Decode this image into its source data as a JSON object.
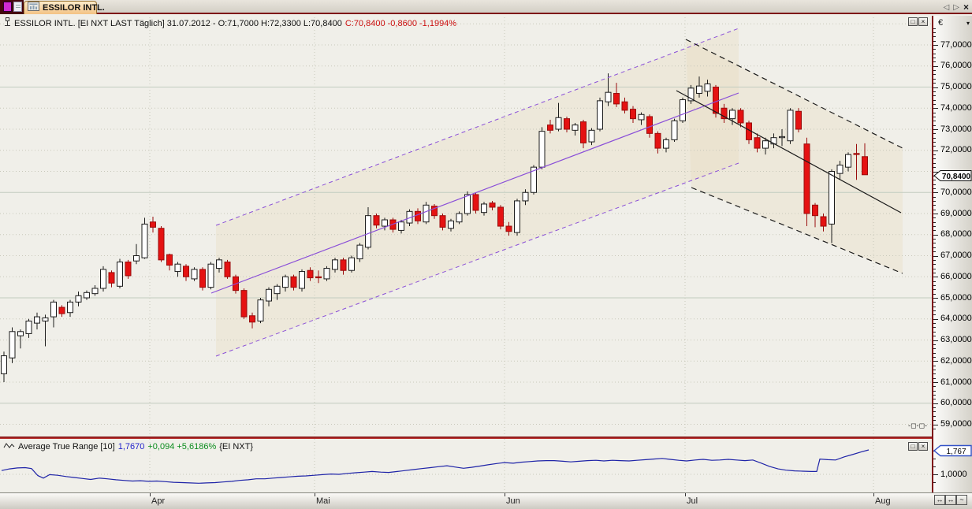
{
  "tab_bar": {
    "tab_title": "ESSILOR INTL.",
    "nav_prev": "◁",
    "nav_next": "▷",
    "nav_close": "×"
  },
  "main_panel": {
    "header_black": "ESSILOR INTL. [EI NXT LAST Täglich] 31.07.2012 - O:71,7000 H:72,3300 L:70,8400",
    "header_red": "C:70,8400 -0,8600 -1,1994%",
    "maximize_glyph": "□",
    "close_glyph": "×"
  },
  "indicator_panel": {
    "name": "Average True Range [10]",
    "value": "1,7670",
    "change": "+0,094 +5,6186%",
    "symbol": "{EI NXT}",
    "maximize_glyph": "□",
    "close_glyph": "×"
  },
  "price_axis": {
    "currency": "€",
    "dropdown_glyph": "▾",
    "pointer_text": "70,8400",
    "link_glyph": "-◻-◻-",
    "labels": [
      {
        "p": 77,
        "t": "77,0000"
      },
      {
        "p": 76,
        "t": "76,0000"
      },
      {
        "p": 75,
        "t": "75,0000"
      },
      {
        "p": 74,
        "t": "74,0000"
      },
      {
        "p": 73,
        "t": "73,0000"
      },
      {
        "p": 72,
        "t": "72,0000"
      },
      {
        "p": 70,
        "t": "70,0000"
      },
      {
        "p": 69,
        "t": "69,0000"
      },
      {
        "p": 68,
        "t": "68,0000"
      },
      {
        "p": 67,
        "t": "67,0000"
      },
      {
        "p": 66,
        "t": "66,0000"
      },
      {
        "p": 65,
        "t": "65,0000"
      },
      {
        "p": 64,
        "t": "64,0000"
      },
      {
        "p": 63,
        "t": "63,0000"
      },
      {
        "p": 62,
        "t": "62,0000"
      },
      {
        "p": 61,
        "t": "61,0000"
      },
      {
        "p": 60,
        "t": "60,0000"
      },
      {
        "p": 59,
        "t": "59,0000"
      }
    ]
  },
  "atr_axis": {
    "pointer_text": "1,767",
    "label_value": 1.0,
    "label_text": "1,0000"
  },
  "time_axis": {
    "months": [
      {
        "label": "Apr",
        "x": 190
      },
      {
        "label": "Mai",
        "x": 399
      },
      {
        "label": "Jun",
        "x": 640
      },
      {
        "label": "Jul",
        "x": 869
      },
      {
        "label": "Aug",
        "x": 1108
      }
    ],
    "buttons": [
      {
        "glyph": "↔"
      },
      {
        "glyph": "↔"
      },
      {
        "glyph": "~"
      }
    ]
  },
  "colors": {
    "panel_bg": "#f0efe9",
    "up_candle_fill": "#ffffff",
    "up_candle_stroke": "#1c1c1c",
    "down_candle_fill": "#e51212",
    "down_candle_stroke": "#990d0d",
    "trend_purple": "#8a4fd8",
    "trend_black": "#1a1a1a",
    "atr_line": "#1f24a8",
    "grid_solid": "#c2ccc0",
    "grid_dotted": "#c8c8ba",
    "channel_tint": "#e7dabc",
    "separator_red": "#b22222"
  },
  "chart_data": [
    {
      "type": "candlestick",
      "title": "ESSILOR INTL. [EI NXT LAST Täglich]",
      "date": "31.07.2012",
      "last": {
        "open": 71.7,
        "high": 72.33,
        "low": 70.84,
        "close": 70.84,
        "change": -0.86,
        "change_pct": -1.1994
      },
      "ylabel": "€",
      "ylim": [
        58.4,
        78.4
      ],
      "y_tick_step": 1.0,
      "y_solid_gridlines": [
        60,
        65,
        70,
        75
      ],
      "x_start": 5,
      "x_step": 10.5,
      "candles": [
        [
          61.4,
          62.45,
          61.0,
          62.25
        ],
        [
          62.15,
          63.6,
          61.9,
          63.4
        ],
        [
          63.2,
          63.5,
          62.6,
          63.4
        ],
        [
          63.3,
          64.0,
          63.1,
          63.9
        ],
        [
          63.8,
          64.3,
          63.5,
          64.1
        ],
        [
          63.9,
          64.2,
          62.7,
          64.05
        ],
        [
          64.1,
          64.9,
          63.6,
          64.8
        ],
        [
          64.55,
          64.65,
          64.1,
          64.25
        ],
        [
          64.3,
          64.9,
          64.1,
          64.8
        ],
        [
          64.8,
          65.3,
          64.6,
          65.1
        ],
        [
          65.0,
          65.35,
          64.9,
          65.25
        ],
        [
          65.2,
          65.6,
          65.1,
          65.45
        ],
        [
          65.45,
          66.5,
          65.3,
          66.35
        ],
        [
          66.2,
          66.3,
          65.5,
          65.7
        ],
        [
          65.55,
          66.85,
          65.45,
          66.7
        ],
        [
          66.7,
          66.8,
          65.9,
          66.05
        ],
        [
          66.75,
          67.55,
          66.6,
          67.0
        ],
        [
          66.9,
          68.8,
          66.85,
          68.5
        ],
        [
          68.6,
          68.85,
          68.1,
          68.35
        ],
        [
          68.3,
          68.4,
          66.7,
          66.8
        ],
        [
          67.05,
          67.1,
          66.3,
          66.55
        ],
        [
          66.25,
          66.7,
          66.0,
          66.6
        ],
        [
          66.5,
          66.6,
          65.8,
          66.0
        ],
        [
          65.9,
          66.45,
          65.8,
          66.35
        ],
        [
          66.35,
          66.45,
          65.35,
          65.5
        ],
        [
          65.5,
          66.7,
          65.4,
          66.6
        ],
        [
          66.4,
          66.9,
          66.2,
          66.8
        ],
        [
          66.7,
          66.8,
          65.9,
          66.0
        ],
        [
          66.0,
          66.1,
          65.2,
          65.35
        ],
        [
          65.35,
          65.45,
          64.0,
          64.1
        ],
        [
          64.15,
          64.3,
          63.55,
          63.85
        ],
        [
          63.9,
          65.0,
          63.8,
          64.9
        ],
        [
          64.85,
          65.5,
          64.6,
          65.4
        ],
        [
          65.2,
          65.65,
          64.9,
          65.55
        ],
        [
          65.5,
          66.1,
          65.3,
          66.0
        ],
        [
          66.0,
          66.1,
          65.35,
          65.5
        ],
        [
          65.45,
          66.35,
          65.3,
          66.25
        ],
        [
          66.3,
          66.45,
          65.8,
          65.95
        ],
        [
          66.0,
          66.3,
          65.7,
          65.95
        ],
        [
          65.9,
          66.5,
          65.8,
          66.4
        ],
        [
          66.35,
          66.9,
          66.2,
          66.8
        ],
        [
          66.8,
          66.9,
          66.1,
          66.3
        ],
        [
          66.3,
          67.0,
          66.2,
          66.9
        ],
        [
          66.85,
          67.6,
          66.7,
          67.5
        ],
        [
          67.4,
          69.3,
          67.3,
          68.9
        ],
        [
          68.9,
          69.0,
          68.3,
          68.45
        ],
        [
          68.4,
          68.8,
          68.2,
          68.7
        ],
        [
          68.7,
          68.8,
          68.1,
          68.25
        ],
        [
          68.2,
          68.7,
          68.05,
          68.6
        ],
        [
          68.55,
          69.2,
          68.4,
          69.1
        ],
        [
          69.1,
          69.25,
          68.5,
          68.65
        ],
        [
          68.6,
          69.55,
          68.5,
          69.4
        ],
        [
          69.35,
          69.45,
          68.75,
          68.9
        ],
        [
          68.9,
          69.0,
          68.2,
          68.35
        ],
        [
          68.3,
          68.75,
          68.15,
          68.65
        ],
        [
          68.6,
          69.1,
          68.5,
          69.0
        ],
        [
          69.0,
          70.05,
          68.9,
          69.9
        ],
        [
          69.9,
          70.0,
          69.0,
          69.15
        ],
        [
          69.05,
          69.55,
          68.9,
          69.45
        ],
        [
          69.5,
          69.6,
          69.15,
          69.3
        ],
        [
          69.3,
          69.4,
          68.25,
          68.4
        ],
        [
          68.4,
          68.6,
          67.95,
          68.15
        ],
        [
          68.1,
          69.7,
          67.95,
          69.6
        ],
        [
          69.6,
          70.15,
          69.4,
          70.0
        ],
        [
          70.0,
          71.3,
          69.9,
          71.2
        ],
        [
          71.2,
          73.1,
          71.1,
          72.9
        ],
        [
          73.2,
          73.45,
          72.8,
          72.95
        ],
        [
          73.0,
          74.25,
          72.9,
          73.55
        ],
        [
          73.5,
          73.6,
          72.85,
          73.0
        ],
        [
          72.95,
          73.3,
          72.7,
          73.2
        ],
        [
          73.35,
          73.45,
          72.1,
          72.35
        ],
        [
          72.4,
          73.05,
          72.25,
          72.95
        ],
        [
          73.0,
          74.5,
          72.9,
          74.35
        ],
        [
          74.3,
          75.65,
          74.1,
          74.75
        ],
        [
          74.7,
          75.2,
          74.05,
          74.2
        ],
        [
          74.3,
          74.5,
          73.75,
          73.9
        ],
        [
          73.95,
          74.1,
          73.3,
          73.5
        ],
        [
          73.45,
          73.8,
          73.2,
          73.7
        ],
        [
          73.6,
          73.7,
          72.6,
          72.8
        ],
        [
          72.8,
          72.9,
          71.85,
          72.1
        ],
        [
          72.1,
          72.6,
          71.9,
          72.5
        ],
        [
          72.5,
          73.5,
          72.4,
          73.4
        ],
        [
          73.4,
          74.5,
          73.3,
          74.4
        ],
        [
          74.35,
          75.1,
          74.2,
          74.95
        ],
        [
          74.7,
          75.5,
          74.5,
          75.05
        ],
        [
          74.8,
          75.35,
          74.55,
          75.15
        ],
        [
          75.0,
          75.1,
          73.55,
          73.75
        ],
        [
          74.0,
          74.2,
          73.3,
          73.5
        ],
        [
          73.5,
          74.0,
          73.2,
          73.9
        ],
        [
          73.9,
          74.0,
          73.1,
          73.3
        ],
        [
          73.3,
          73.4,
          72.3,
          72.5
        ],
        [
          72.6,
          72.8,
          71.9,
          72.1
        ],
        [
          72.1,
          72.6,
          71.8,
          72.45
        ],
        [
          72.3,
          72.8,
          72.1,
          72.6
        ],
        [
          72.6,
          73.0,
          72.2,
          72.65
        ],
        [
          72.45,
          74.0,
          72.3,
          73.9
        ],
        [
          73.85,
          74.0,
          72.85,
          73.0
        ],
        [
          72.3,
          72.6,
          68.4,
          69.0
        ],
        [
          69.4,
          69.5,
          68.35,
          68.9
        ],
        [
          68.85,
          69.0,
          68.15,
          68.4
        ],
        [
          68.5,
          71.1,
          67.6,
          71.0
        ],
        [
          70.9,
          71.5,
          70.6,
          71.3
        ],
        [
          71.2,
          71.9,
          71.0,
          71.8
        ],
        [
          71.85,
          72.3,
          70.6,
          71.8
        ],
        [
          71.7,
          72.33,
          70.84,
          70.84
        ]
      ],
      "trendlines": {
        "up_channel": {
          "solid": [
            [
              268,
              372
            ],
            [
              937,
              118
            ]
          ],
          "upper_dashed": [
            [
              274,
              286
            ],
            [
              937,
              36
            ]
          ],
          "lower_dashed": [
            [
              274,
              452
            ],
            [
              937,
              207
            ]
          ]
        },
        "down_channel": {
          "solid": [
            [
              858,
              115
            ],
            [
              1143,
              270
            ]
          ],
          "upper_dashed": [
            [
              870,
              50
            ],
            [
              1145,
              188
            ]
          ],
          "lower_dashed": [
            [
              877,
              238
            ],
            [
              1145,
              347
            ]
          ]
        }
      }
    },
    {
      "type": "line",
      "name": "Average True Range [10]",
      "period": 10,
      "last_value": 1.767,
      "change_abs": 0.094,
      "change_pct": 5.6186,
      "gridline": 1.0,
      "points": [
        [
          2,
          1.12
        ],
        [
          12,
          1.17
        ],
        [
          22,
          1.2
        ],
        [
          32,
          1.21
        ],
        [
          40,
          1.18
        ],
        [
          48,
          0.96
        ],
        [
          55,
          0.88
        ],
        [
          63,
          0.99
        ],
        [
          73,
          0.97
        ],
        [
          84,
          0.93
        ],
        [
          94,
          0.9
        ],
        [
          105,
          0.87
        ],
        [
          115,
          0.84
        ],
        [
          126,
          0.88
        ],
        [
          136,
          0.86
        ],
        [
          147,
          0.83
        ],
        [
          157,
          0.81
        ],
        [
          168,
          0.79
        ],
        [
          178,
          0.8
        ],
        [
          189,
          0.78
        ],
        [
          199,
          0.79
        ],
        [
          210,
          0.77
        ],
        [
          220,
          0.75
        ],
        [
          231,
          0.74
        ],
        [
          241,
          0.73
        ],
        [
          252,
          0.72
        ],
        [
          262,
          0.73
        ],
        [
          273,
          0.74
        ],
        [
          283,
          0.76
        ],
        [
          294,
          0.78
        ],
        [
          304,
          0.81
        ],
        [
          315,
          0.83
        ],
        [
          325,
          0.86
        ],
        [
          336,
          0.86
        ],
        [
          346,
          0.88
        ],
        [
          357,
          0.9
        ],
        [
          367,
          0.92
        ],
        [
          378,
          0.94
        ],
        [
          388,
          0.95
        ],
        [
          399,
          0.97
        ],
        [
          409,
          0.99
        ],
        [
          420,
          1.01
        ],
        [
          430,
          1.0
        ],
        [
          441,
          1.03
        ],
        [
          451,
          1.05
        ],
        [
          462,
          1.07
        ],
        [
          472,
          1.09
        ],
        [
          483,
          1.07
        ],
        [
          493,
          1.06
        ],
        [
          504,
          1.09
        ],
        [
          514,
          1.12
        ],
        [
          525,
          1.15
        ],
        [
          535,
          1.18
        ],
        [
          546,
          1.21
        ],
        [
          556,
          1.24
        ],
        [
          567,
          1.27
        ],
        [
          577,
          1.23
        ],
        [
          588,
          1.19
        ],
        [
          598,
          1.22
        ],
        [
          609,
          1.26
        ],
        [
          619,
          1.3
        ],
        [
          630,
          1.34
        ],
        [
          640,
          1.37
        ],
        [
          651,
          1.35
        ],
        [
          661,
          1.38
        ],
        [
          672,
          1.4
        ],
        [
          682,
          1.42
        ],
        [
          693,
          1.43
        ],
        [
          703,
          1.43
        ],
        [
          714,
          1.41
        ],
        [
          724,
          1.39
        ],
        [
          735,
          1.41
        ],
        [
          745,
          1.43
        ],
        [
          756,
          1.44
        ],
        [
          766,
          1.42
        ],
        [
          777,
          1.44
        ],
        [
          787,
          1.43
        ],
        [
          798,
          1.42
        ],
        [
          808,
          1.44
        ],
        [
          819,
          1.46
        ],
        [
          829,
          1.48
        ],
        [
          840,
          1.5
        ],
        [
          850,
          1.47
        ],
        [
          861,
          1.44
        ],
        [
          871,
          1.42
        ],
        [
          882,
          1.45
        ],
        [
          892,
          1.47
        ],
        [
          903,
          1.44
        ],
        [
          913,
          1.45
        ],
        [
          924,
          1.47
        ],
        [
          934,
          1.45
        ],
        [
          945,
          1.43
        ],
        [
          955,
          1.45
        ],
        [
          966,
          1.35
        ],
        [
          976,
          1.25
        ],
        [
          987,
          1.17
        ],
        [
          997,
          1.13
        ],
        [
          1008,
          1.11
        ],
        [
          1018,
          1.1
        ],
        [
          1029,
          1.09
        ],
        [
          1036,
          1.09
        ],
        [
          1040,
          1.48
        ],
        [
          1050,
          1.46
        ],
        [
          1060,
          1.45
        ],
        [
          1071,
          1.55
        ],
        [
          1081,
          1.62
        ],
        [
          1092,
          1.7
        ],
        [
          1102,
          1.767
        ]
      ]
    }
  ]
}
